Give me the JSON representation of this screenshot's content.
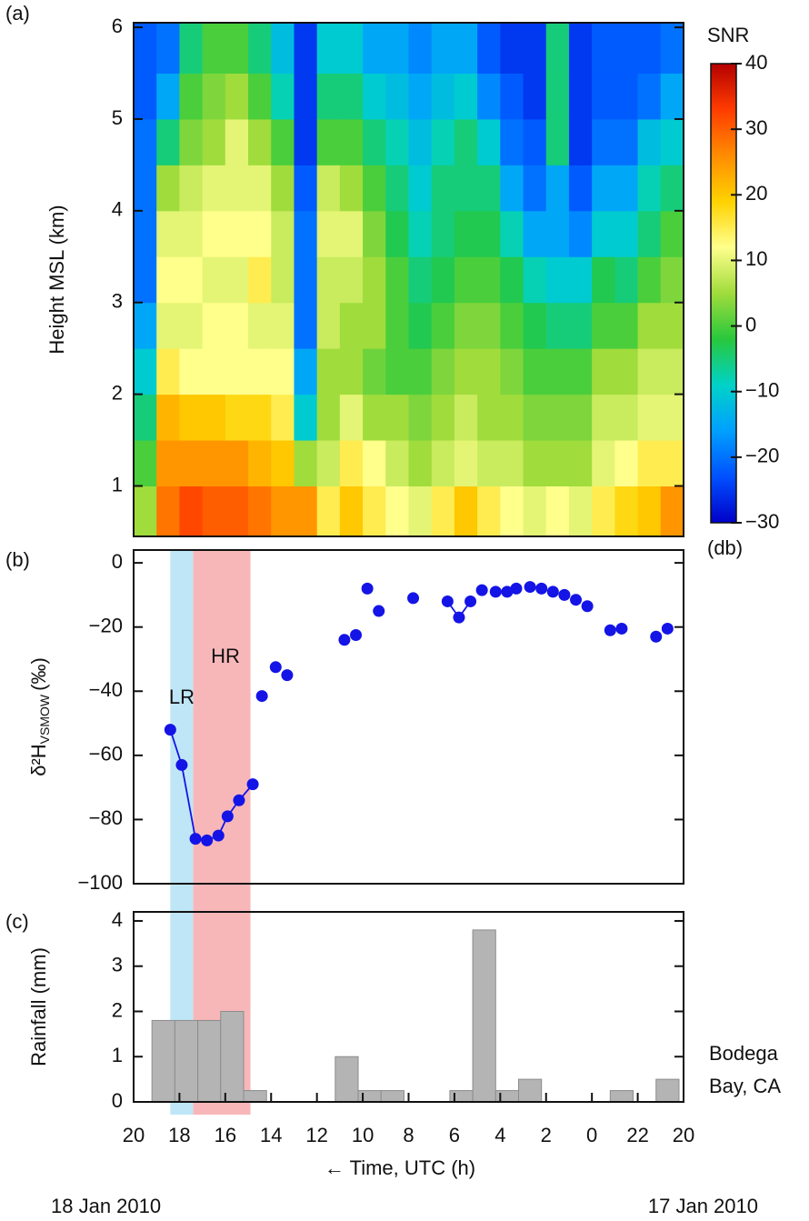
{
  "chart_data": [
    {
      "type": "heatmap",
      "panel": "(a)",
      "ylabel": "Height MSL (km)",
      "colorbar_title": "SNR",
      "colorbar_unit": "(db)",
      "xlim": [
        44,
        20
      ],
      "ylim": [
        0.45,
        6.05
      ],
      "yticks": [
        1,
        2,
        3,
        4,
        5,
        6
      ],
      "clim": [
        -30,
        40
      ],
      "cticks": [
        {
          "value": -30,
          "label": "−30"
        },
        {
          "value": -20,
          "label": "−20"
        },
        {
          "value": -10,
          "label": "−10"
        },
        0,
        10,
        20,
        30,
        40
      ],
      "colors": [
        "#0000c8",
        "#0050ff",
        "#00a0ff",
        "#00d2c8",
        "#28c83c",
        "#a0dc3c",
        "#ffff8c",
        "#ffd200",
        "#ff8c00",
        "#ff3c00",
        "#b40000"
      ],
      "x_edges": [
        44,
        43,
        42,
        41,
        40,
        39,
        38,
        37,
        36,
        35,
        34,
        33,
        32,
        31,
        30,
        29,
        28,
        27,
        26,
        25,
        24,
        23,
        22,
        21,
        20
      ],
      "y_edges": [
        0.45,
        1,
        1.5,
        2,
        2.5,
        3,
        3.5,
        4,
        4.5,
        5,
        5.5,
        6.05
      ],
      "z": [
        [
          5,
          0,
          -5,
          -10,
          -15,
          -20,
          -20,
          -20,
          -20,
          -22,
          -22
        ],
        [
          28,
          25,
          22,
          15,
          10,
          12,
          10,
          5,
          -5,
          -15,
          -20
        ],
        [
          32,
          25,
          20,
          12,
          10,
          12,
          10,
          8,
          3,
          0,
          -5
        ],
        [
          30,
          25,
          20,
          12,
          12,
          10,
          12,
          10,
          5,
          3,
          0
        ],
        [
          30,
          25,
          18,
          12,
          12,
          10,
          12,
          10,
          10,
          5,
          0
        ],
        [
          28,
          22,
          18,
          12,
          10,
          15,
          12,
          10,
          5,
          0,
          -5
        ],
        [
          25,
          20,
          15,
          12,
          10,
          8,
          8,
          5,
          0,
          -8,
          -12
        ],
        [
          25,
          5,
          -10,
          -15,
          -20,
          -20,
          -20,
          -22,
          -25,
          -25,
          -25
        ],
        [
          15,
          8,
          5,
          5,
          8,
          8,
          10,
          8,
          0,
          -5,
          -10
        ],
        [
          20,
          15,
          10,
          5,
          5,
          8,
          10,
          5,
          0,
          -5,
          -10
        ],
        [
          15,
          12,
          5,
          2,
          5,
          5,
          3,
          0,
          -5,
          -10,
          -15
        ],
        [
          12,
          8,
          5,
          0,
          0,
          0,
          -3,
          -5,
          -8,
          -12,
          -15
        ],
        [
          10,
          5,
          3,
          0,
          -3,
          -5,
          -8,
          -10,
          -12,
          -15,
          -18
        ],
        [
          15,
          8,
          5,
          3,
          0,
          -3,
          -5,
          -5,
          -8,
          -12,
          -15
        ],
        [
          20,
          10,
          8,
          5,
          3,
          0,
          -3,
          -5,
          -5,
          -10,
          -15
        ],
        [
          15,
          8,
          5,
          5,
          3,
          0,
          -3,
          -5,
          -10,
          -18,
          -22
        ],
        [
          12,
          8,
          5,
          3,
          0,
          -3,
          -8,
          -15,
          -20,
          -22,
          -25
        ],
        [
          10,
          5,
          3,
          0,
          -3,
          -8,
          -15,
          -20,
          -22,
          -25,
          -25
        ],
        [
          12,
          5,
          3,
          0,
          -5,
          -10,
          -15,
          -15,
          -5,
          -5,
          -5
        ],
        [
          10,
          5,
          3,
          0,
          -5,
          -10,
          -18,
          -22,
          -25,
          -25,
          -25
        ],
        [
          15,
          10,
          8,
          5,
          0,
          -3,
          -10,
          -15,
          -20,
          -22,
          -22
        ],
        [
          18,
          12,
          8,
          5,
          0,
          -5,
          -10,
          -15,
          -20,
          -22,
          -22
        ],
        [
          20,
          15,
          10,
          8,
          5,
          0,
          -5,
          -8,
          -12,
          -20,
          -22
        ],
        [
          25,
          15,
          10,
          8,
          5,
          3,
          0,
          -5,
          -10,
          -15,
          -20
        ]
      ]
    },
    {
      "type": "scatter",
      "panel": "(b)",
      "ylabel": {
        "main": "δ²H",
        "sub": "VSMOW",
        "unit": "(‰)"
      },
      "xlim": [
        44,
        20
      ],
      "ylim": [
        -100,
        4
      ],
      "yticks": [
        {
          "value": -100,
          "label": "−100"
        },
        {
          "value": -80,
          "label": "−80"
        },
        {
          "value": -60,
          "label": "−60"
        },
        {
          "value": -40,
          "label": "−40"
        },
        {
          "value": -20,
          "label": "−20"
        },
        0
      ],
      "spans": [
        {
          "label": "LR",
          "x": [
            42.4,
            41.4
          ],
          "color": "#bfe6f7"
        },
        {
          "label": "HR",
          "x": [
            41.4,
            38.9
          ],
          "color": "#f7b7b9"
        }
      ],
      "series": [
        {
          "type": "scatter",
          "color": "#1414e6",
          "x": [
            42.4,
            41.9,
            41.3,
            40.8,
            40.3,
            39.9,
            39.4,
            38.8,
            38.4,
            37.8,
            37.3,
            34.8,
            34.3,
            33.8,
            33.3,
            31.8,
            30.3,
            29.8,
            29.3,
            28.8,
            28.2,
            27.7,
            27.3,
            26.7,
            26.2,
            25.7,
            25.2,
            24.7,
            24.2,
            23.2,
            22.7,
            21.2,
            20.7
          ],
          "values": [
            -52,
            -63,
            -86,
            -86.5,
            -85,
            -79,
            -74,
            -69,
            -41.5,
            -32.5,
            -35,
            -24,
            -22.5,
            -8,
            -15,
            -11,
            -12,
            -17,
            -12,
            -8.5,
            -9,
            -9,
            -8,
            -7.5,
            -8,
            -9,
            -10,
            -11.5,
            -13.5,
            -21,
            -20.5,
            -23,
            -20.5
          ]
        },
        {
          "type": "line",
          "color": "#1414e6",
          "x": [
            42.4,
            41.9,
            41.3,
            40.8,
            40.3,
            39.9,
            39.4,
            38.8,
            38.4,
            37.8,
            37.3,
            34.8,
            34.3,
            33.8,
            33.3,
            31.8,
            30.3,
            29.8,
            29.3,
            28.8,
            28.2,
            27.7,
            27.3,
            26.7,
            26.2,
            25.7,
            25.2,
            24.7,
            24.2,
            23.2,
            22.7,
            21.2,
            20.7
          ],
          "values": [
            -52,
            -63,
            -86,
            -86.5,
            -85,
            -79,
            -74,
            -69,
            null,
            null,
            null,
            null,
            null,
            null,
            null,
            null,
            -12,
            -17,
            -12,
            null,
            null,
            null,
            null,
            null,
            null,
            null,
            null,
            null,
            null,
            null,
            null,
            null,
            null
          ]
        }
      ]
    },
    {
      "type": "histogram",
      "panel": "(c)",
      "ylabel": "Rainfall (mm)",
      "annotation": [
        "Bodega",
        "Bay, CA"
      ],
      "xlabel": "← Time, UTC (h)",
      "date_left": "18 Jan 2010",
      "date_right": "17 Jan 2010",
      "color": "#b4b4b4",
      "xlim": [
        44,
        20
      ],
      "ylim": [
        0,
        4.2
      ],
      "yticks": [
        0,
        1,
        2,
        3,
        4
      ],
      "xticks": [
        {
          "value": 44,
          "label": "20"
        },
        {
          "value": 42,
          "label": "18"
        },
        {
          "value": 40,
          "label": "16"
        },
        {
          "value": 38,
          "label": "14"
        },
        {
          "value": 36,
          "label": "12"
        },
        {
          "value": 34,
          "label": "10"
        },
        {
          "value": 32,
          "label": "8"
        },
        {
          "value": 30,
          "label": "6"
        },
        {
          "value": 28,
          "label": "4"
        },
        {
          "value": 26,
          "label": "2"
        },
        {
          "value": 24,
          "label": "0"
        },
        22,
        20
      ],
      "bins": [
        43.2,
        42.2,
        41.2,
        40.2,
        39.2,
        38.2,
        37.2,
        36.2,
        35.2,
        34.2,
        33.2,
        32.2,
        31.2,
        30.2,
        29.2,
        28.2,
        27.2,
        26.2,
        25.2,
        24.2,
        23.2,
        22.2,
        21.2,
        20.2
      ],
      "values": [
        1.8,
        1.8,
        1.8,
        2.0,
        0.25,
        0,
        0,
        0,
        1.0,
        0.25,
        0.25,
        0,
        0,
        0.25,
        3.8,
        0.25,
        0.5,
        0,
        0,
        0,
        0.25,
        0,
        0.5
      ]
    }
  ]
}
